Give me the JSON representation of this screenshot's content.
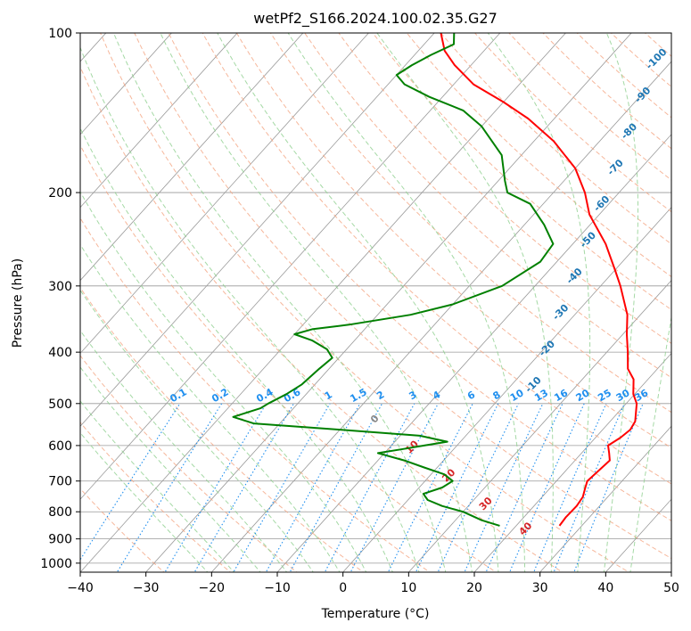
{
  "chart_data": {
    "type": "skew-t",
    "title": "wetPf2_S166.2024.100.02.35.G27",
    "xlabel": "Temperature (°C)",
    "ylabel": "Pressure (hPa)",
    "xlim": [
      -40,
      50
    ],
    "ylim": [
      1040,
      100
    ],
    "y_scale": "log",
    "grid": true,
    "x_ticks": [
      "−40",
      "−30",
      "−20",
      "−10",
      "0",
      "10",
      "20",
      "30",
      "40",
      "50"
    ],
    "y_ticks": [
      "100",
      "200",
      "300",
      "400",
      "500",
      "600",
      "700",
      "800",
      "900",
      "1000"
    ],
    "series": [
      {
        "key": "temperature",
        "color": "#ff0000",
        "points": [
          [
            850,
            26.6
          ],
          [
            820,
            26.4
          ],
          [
            780,
            26.5
          ],
          [
            750,
            26.2
          ],
          [
            720,
            25.3
          ],
          [
            700,
            24.7
          ],
          [
            670,
            25.0
          ],
          [
            640,
            25.3
          ],
          [
            620,
            24.2
          ],
          [
            600,
            23.0
          ],
          [
            580,
            23.8
          ],
          [
            560,
            24.2
          ],
          [
            540,
            23.8
          ],
          [
            500,
            21.6
          ],
          [
            480,
            19.8
          ],
          [
            450,
            17.8
          ],
          [
            430,
            15.5
          ],
          [
            400,
            13.2
          ],
          [
            370,
            10.6
          ],
          [
            340,
            8.0
          ],
          [
            300,
            3.0
          ],
          [
            280,
            0.0
          ],
          [
            250,
            -5.0
          ],
          [
            220,
            -11.5
          ],
          [
            200,
            -15.2
          ],
          [
            180,
            -20.0
          ],
          [
            160,
            -27.0
          ],
          [
            145,
            -34.0
          ],
          [
            135,
            -40.0
          ],
          [
            125,
            -47.0
          ],
          [
            115,
            -52.5
          ],
          [
            108,
            -56.0
          ],
          [
            100,
            -59.0
          ]
        ]
      },
      {
        "key": "dewpoint",
        "color": "#008000",
        "points": [
          [
            850,
            17.5
          ],
          [
            830,
            14.0
          ],
          [
            800,
            10.0
          ],
          [
            780,
            6.0
          ],
          [
            760,
            3.0
          ],
          [
            740,
            1.5
          ],
          [
            720,
            3.5
          ],
          [
            700,
            4.2
          ],
          [
            680,
            2.0
          ],
          [
            660,
            -2.0
          ],
          [
            640,
            -6.0
          ],
          [
            620,
            -11.0
          ],
          [
            610,
            -8.0
          ],
          [
            600,
            -5.0
          ],
          [
            590,
            -2.0
          ],
          [
            575,
            -7.0
          ],
          [
            560,
            -20.0
          ],
          [
            545,
            -34.0
          ],
          [
            530,
            -38.0
          ],
          [
            510,
            -35.0
          ],
          [
            500,
            -34.5
          ],
          [
            480,
            -33.0
          ],
          [
            460,
            -32.0
          ],
          [
            430,
            -31.5
          ],
          [
            410,
            -31.0
          ],
          [
            395,
            -33.0
          ],
          [
            380,
            -36.5
          ],
          [
            370,
            -40.0
          ],
          [
            362,
            -38.0
          ],
          [
            355,
            -33.0
          ],
          [
            340,
            -25.0
          ],
          [
            325,
            -20.0
          ],
          [
            300,
            -15.0
          ],
          [
            270,
            -12.5
          ],
          [
            250,
            -13.0
          ],
          [
            230,
            -17.0
          ],
          [
            210,
            -22.0
          ],
          [
            200,
            -27.0
          ],
          [
            190,
            -29.0
          ],
          [
            170,
            -33.0
          ],
          [
            150,
            -40.0
          ],
          [
            140,
            -45.0
          ],
          [
            132,
            -52.0
          ],
          [
            125,
            -57.5
          ],
          [
            120,
            -60.0
          ],
          [
            115,
            -59.0
          ],
          [
            110,
            -57.5
          ],
          [
            105,
            -55.5
          ],
          [
            100,
            -57.0
          ]
        ]
      }
    ],
    "dry_adiabat_labels": [
      "-100",
      "-90",
      "-80",
      "-70",
      "-60",
      "-50",
      "-40",
      "-30",
      "-20",
      "-10",
      "0",
      "10",
      "20",
      "30",
      "40"
    ],
    "mixing_ratio_labels": [
      "0.1",
      "0.2",
      "0.4",
      "0.6",
      "1",
      "1.5",
      "2",
      "3",
      "4",
      "6",
      "8",
      "10",
      "13",
      "16",
      "20",
      "25",
      "30",
      "36"
    ],
    "colors": {
      "temperature": "#ff0000",
      "dewpoint": "#008000",
      "isobar_isotherm": "#999999",
      "dry_adiabat": "#f4a582",
      "moist_adiabat": "#8fcf8f",
      "mixing_ratio": "#1f8fef",
      "label_blue": "#1f77b4",
      "label_red": "#d62728"
    }
  }
}
